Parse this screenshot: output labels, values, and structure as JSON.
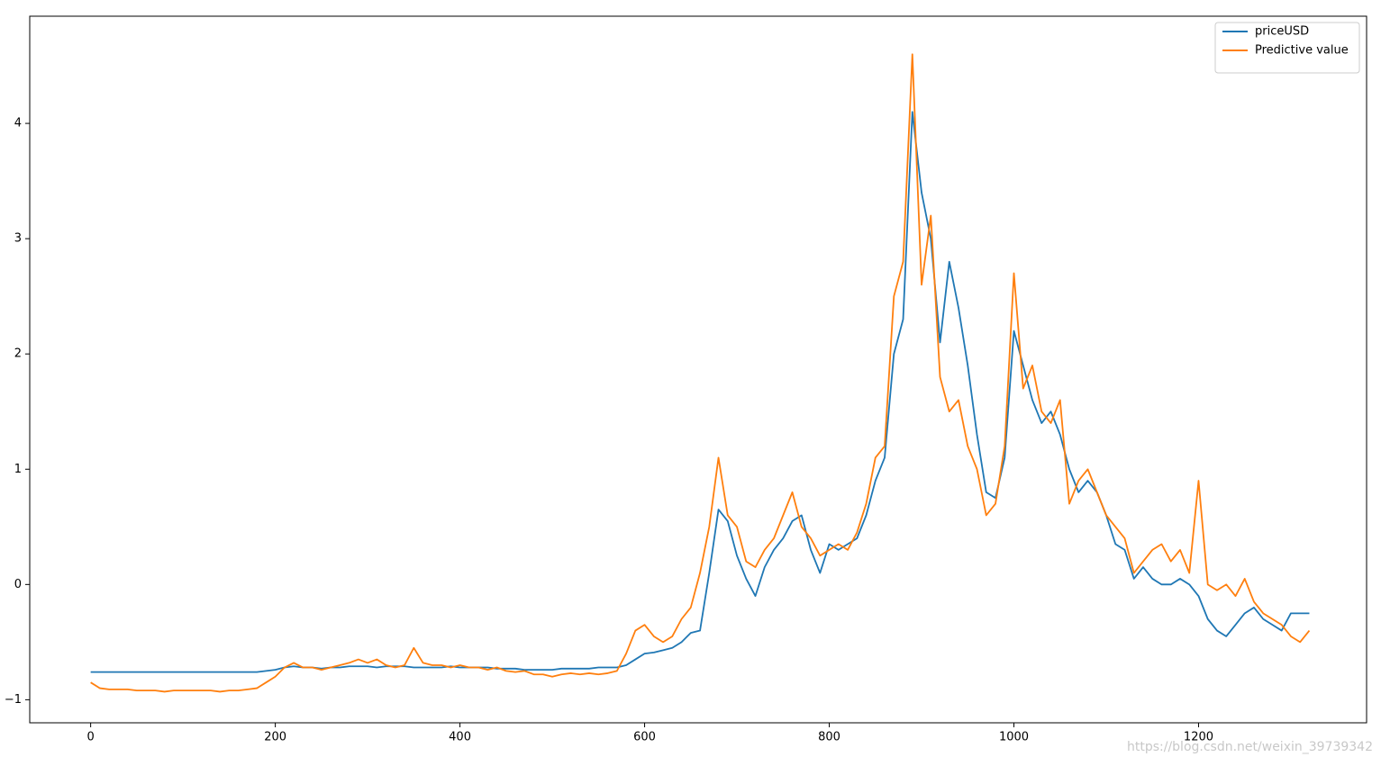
{
  "chart_data": {
    "type": "line",
    "x": [
      0,
      10,
      20,
      30,
      40,
      50,
      60,
      70,
      80,
      90,
      100,
      110,
      120,
      130,
      140,
      150,
      160,
      170,
      180,
      190,
      200,
      210,
      220,
      230,
      240,
      250,
      260,
      270,
      280,
      290,
      300,
      310,
      320,
      330,
      340,
      350,
      360,
      370,
      380,
      390,
      400,
      410,
      420,
      430,
      440,
      450,
      460,
      470,
      480,
      490,
      500,
      510,
      520,
      530,
      540,
      550,
      560,
      570,
      580,
      590,
      600,
      610,
      620,
      630,
      640,
      650,
      660,
      670,
      680,
      690,
      700,
      710,
      720,
      730,
      740,
      750,
      760,
      770,
      780,
      790,
      800,
      810,
      820,
      830,
      840,
      850,
      860,
      870,
      880,
      890,
      900,
      910,
      920,
      930,
      940,
      950,
      960,
      970,
      980,
      990,
      1000,
      1010,
      1020,
      1030,
      1040,
      1050,
      1060,
      1070,
      1080,
      1090,
      1100,
      1110,
      1120,
      1130,
      1140,
      1150,
      1160,
      1170,
      1180,
      1190,
      1200,
      1210,
      1220,
      1230,
      1240,
      1250,
      1260,
      1270,
      1280,
      1290,
      1300,
      1310,
      1320
    ],
    "series": [
      {
        "name": "priceUSD",
        "color": "#1f77b4",
        "values": [
          -0.76,
          -0.76,
          -0.76,
          -0.76,
          -0.76,
          -0.76,
          -0.76,
          -0.76,
          -0.76,
          -0.76,
          -0.76,
          -0.76,
          -0.76,
          -0.76,
          -0.76,
          -0.76,
          -0.76,
          -0.76,
          -0.76,
          -0.75,
          -0.74,
          -0.72,
          -0.71,
          -0.72,
          -0.72,
          -0.73,
          -0.72,
          -0.72,
          -0.71,
          -0.71,
          -0.71,
          -0.72,
          -0.71,
          -0.71,
          -0.71,
          -0.72,
          -0.72,
          -0.72,
          -0.72,
          -0.71,
          -0.72,
          -0.72,
          -0.72,
          -0.72,
          -0.73,
          -0.73,
          -0.73,
          -0.74,
          -0.74,
          -0.74,
          -0.74,
          -0.73,
          -0.73,
          -0.73,
          -0.73,
          -0.72,
          -0.72,
          -0.72,
          -0.7,
          -0.65,
          -0.6,
          -0.59,
          -0.57,
          -0.55,
          -0.5,
          -0.42,
          -0.4,
          0.1,
          0.65,
          0.55,
          0.25,
          0.05,
          -0.1,
          0.15,
          0.3,
          0.4,
          0.55,
          0.6,
          0.3,
          0.1,
          0.35,
          0.3,
          0.35,
          0.4,
          0.6,
          0.9,
          1.1,
          2.0,
          2.3,
          4.1,
          3.4,
          3.0,
          2.1,
          2.8,
          2.4,
          1.9,
          1.3,
          0.8,
          0.75,
          1.1,
          2.2,
          1.9,
          1.6,
          1.4,
          1.5,
          1.3,
          1.0,
          0.8,
          0.9,
          0.8,
          0.6,
          0.35,
          0.3,
          0.05,
          0.15,
          0.05,
          0.0,
          0.0,
          0.05,
          0.0,
          -0.1,
          -0.3,
          -0.4,
          -0.45,
          -0.35,
          -0.25,
          -0.2,
          -0.3,
          -0.35,
          -0.4,
          -0.25,
          -0.25,
          -0.25
        ]
      },
      {
        "name": "Predictive value",
        "color": "#ff7f0e",
        "values": [
          -0.85,
          -0.9,
          -0.91,
          -0.91,
          -0.91,
          -0.92,
          -0.92,
          -0.92,
          -0.93,
          -0.92,
          -0.92,
          -0.92,
          -0.92,
          -0.92,
          -0.93,
          -0.92,
          -0.92,
          -0.91,
          -0.9,
          -0.85,
          -0.8,
          -0.72,
          -0.68,
          -0.72,
          -0.72,
          -0.74,
          -0.72,
          -0.7,
          -0.68,
          -0.65,
          -0.68,
          -0.65,
          -0.7,
          -0.72,
          -0.7,
          -0.55,
          -0.68,
          -0.7,
          -0.7,
          -0.72,
          -0.7,
          -0.72,
          -0.72,
          -0.74,
          -0.72,
          -0.75,
          -0.76,
          -0.75,
          -0.78,
          -0.78,
          -0.8,
          -0.78,
          -0.77,
          -0.78,
          -0.77,
          -0.78,
          -0.77,
          -0.75,
          -0.6,
          -0.4,
          -0.35,
          -0.45,
          -0.5,
          -0.45,
          -0.3,
          -0.2,
          0.1,
          0.5,
          1.1,
          0.6,
          0.5,
          0.2,
          0.15,
          0.3,
          0.4,
          0.6,
          0.8,
          0.5,
          0.4,
          0.25,
          0.3,
          0.35,
          0.3,
          0.45,
          0.7,
          1.1,
          1.2,
          2.5,
          2.8,
          4.6,
          2.6,
          3.2,
          1.8,
          1.5,
          1.6,
          1.2,
          1.0,
          0.6,
          0.7,
          1.2,
          2.7,
          1.7,
          1.9,
          1.5,
          1.4,
          1.6,
          0.7,
          0.9,
          1.0,
          0.8,
          0.6,
          0.5,
          0.4,
          0.1,
          0.2,
          0.3,
          0.35,
          0.2,
          0.3,
          0.1,
          0.9,
          0.0,
          -0.05,
          0.0,
          -0.1,
          0.05,
          -0.15,
          -0.25,
          -0.3,
          -0.35,
          -0.45,
          -0.5,
          -0.4
        ]
      }
    ],
    "xlim": [
      -66,
      1382
    ],
    "xticks": [
      0,
      200,
      400,
      600,
      800,
      1000,
      1200
    ],
    "ylim": [
      -1.2,
      4.93
    ],
    "yticks": [
      {
        "value": -1,
        "label": "−1"
      },
      0,
      1,
      2,
      3,
      4
    ],
    "legend": "upper right",
    "annotations": [
      "https://blog.csdn.net/weixin_39739342"
    ]
  }
}
